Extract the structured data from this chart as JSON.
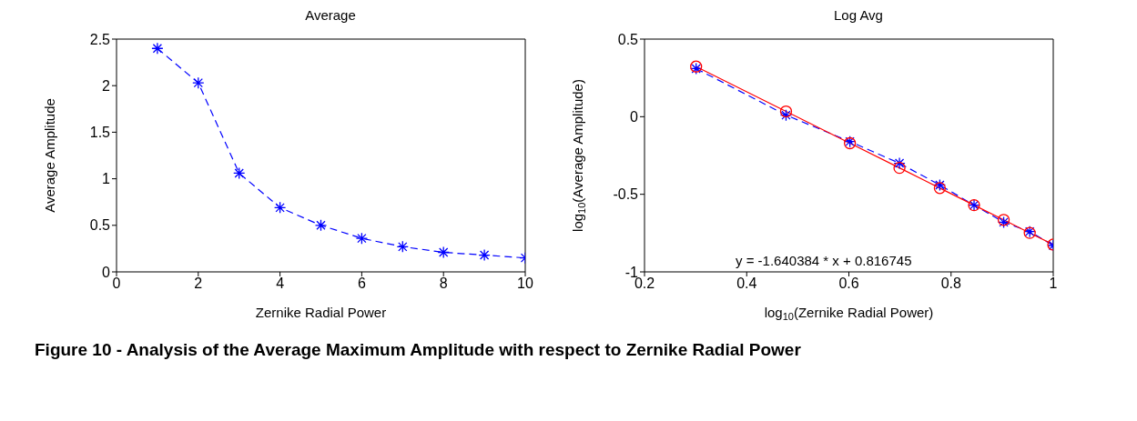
{
  "chart_data": [
    {
      "type": "line",
      "title": "Average",
      "xlabel": "Zernike Radial Power",
      "ylabel": "Average Amplitude",
      "x": [
        1,
        2,
        3,
        4,
        5,
        6,
        7,
        8,
        9,
        10
      ],
      "xlim": [
        0,
        10
      ],
      "xticks": [
        0,
        2,
        4,
        6,
        8,
        10
      ],
      "ylim": [
        0,
        2.5
      ],
      "yticks": [
        0,
        0.5,
        1,
        1.5,
        2,
        2.5
      ],
      "annotations": [
        "Figure 10 - Analysis of the Average Maximum Amplitude with respect to Zernike Radial Power"
      ],
      "series": [
        {
          "color": "#0000ff",
          "values": [
            2.4,
            2.03,
            1.06,
            0.69,
            0.5,
            0.36,
            0.27,
            0.21,
            0.18,
            0.15
          ],
          "marker": "cross",
          "line_style": "dashed"
        }
      ]
    },
    {
      "type": "line",
      "title": "Log Avg",
      "xlabel": "log$_{10}$(Zernike Radial Power)",
      "ylabel": "log$_{10}$(Average Amplitude)",
      "xlim": [
        0.2,
        1
      ],
      "xticks": [
        0.2,
        0.4,
        0.6,
        0.8,
        1
      ],
      "ylim": [
        -1,
        0.5
      ],
      "yticks": [
        -1,
        -0.5,
        0,
        0.5
      ],
      "annotations": [
        "y = -1.640384 * x + 0.816745"
      ],
      "series": [
        {
          "color": "#0000ff",
          "x": [
            0.301,
            0.477,
            0.602,
            0.699,
            0.778,
            0.845,
            0.903,
            0.954,
            1
          ],
          "values": [
            0.31,
            0.01,
            -0.16,
            -0.3,
            -0.44,
            -0.57,
            -0.68,
            -0.74,
            -0.83
          ],
          "marker": "cross",
          "line_style": "dashed"
        },
        {
          "color": "#ff0000",
          "x": [
            0.301,
            0.477,
            0.602,
            0.699,
            0.778,
            0.845,
            0.903,
            0.954,
            1
          ],
          "values": [
            0.323,
            0.034,
            -0.171,
            -0.33,
            -0.46,
            -0.57,
            -0.665,
            -0.749,
            -0.824
          ],
          "marker": "circle",
          "line_style": "solid"
        }
      ]
    }
  ]
}
